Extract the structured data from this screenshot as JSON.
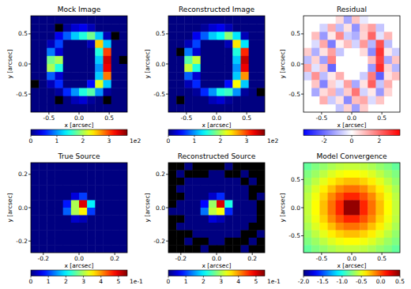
{
  "chart_data": [
    {
      "type": "heatmap",
      "title": "Mock Image",
      "x_label": "x [arcsec]",
      "y_label": "y [arcsec]",
      "xlim": [
        -0.8,
        0.8
      ],
      "ylim": [
        -0.8,
        0.8
      ],
      "xticks": [
        -0.5,
        {
          "value": 0,
          "label": "0.0"
        },
        0.5
      ],
      "yticks": [
        -0.5,
        {
          "value": 0,
          "label": "0.0"
        },
        0.5
      ],
      "color": "jet",
      "cells": [
        [
          0,
          0,
          0,
          0,
          0,
          0,
          0,
          0,
          0,
          0,
          0,
          0
        ],
        [
          0,
          0,
          0,
          -5,
          10,
          30,
          40,
          20,
          0,
          0,
          0,
          0
        ],
        [
          0,
          0,
          0,
          40,
          80,
          120,
          150,
          180,
          120,
          20,
          -5,
          0
        ],
        [
          0,
          0,
          20,
          70,
          0,
          0,
          0,
          20,
          250,
          120,
          0,
          0
        ],
        [
          0,
          0,
          90,
          30,
          0,
          0,
          0,
          0,
          150,
          300,
          0,
          0
        ],
        [
          0,
          0,
          180,
          200,
          0,
          0,
          0,
          0,
          120,
          340,
          0,
          -5
        ],
        [
          0,
          0,
          200,
          150,
          0,
          0,
          0,
          0,
          100,
          330,
          0,
          0
        ],
        [
          0,
          0,
          80,
          30,
          0,
          0,
          0,
          0,
          120,
          280,
          0,
          0
        ],
        [
          -5,
          0,
          20,
          60,
          0,
          0,
          0,
          50,
          220,
          120,
          0,
          0
        ],
        [
          0,
          0,
          0,
          10,
          60,
          100,
          150,
          170,
          100,
          10,
          0,
          0
        ],
        [
          0,
          0,
          0,
          -5,
          0,
          20,
          30,
          10,
          0,
          -5,
          0,
          0
        ],
        [
          0,
          0,
          0,
          0,
          0,
          0,
          0,
          0,
          0,
          0,
          0,
          0
        ]
      ],
      "colorbar": {
        "range": [
          0,
          370
        ],
        "ticks": [
          0,
          {
            "value": 100,
            "label": "1"
          },
          {
            "value": 200,
            "label": "2"
          },
          {
            "value": 300,
            "label": "3"
          }
        ],
        "scale_label": "1e2"
      }
    },
    {
      "type": "heatmap",
      "title": "Reconstructed Image",
      "x_label": "x [arcsec]",
      "y_label": "y [arcsec]",
      "xlim": [
        -0.8,
        0.8
      ],
      "ylim": [
        -0.8,
        0.8
      ],
      "xticks": [
        -0.5,
        {
          "value": 0,
          "label": "0.0"
        },
        0.5
      ],
      "yticks": [
        -0.5,
        {
          "value": 0,
          "label": "0.0"
        },
        0.5
      ],
      "color": "jet",
      "cells": [
        [
          0,
          0,
          0,
          0,
          0,
          0,
          0,
          0,
          0,
          0,
          0,
          0
        ],
        [
          0,
          0,
          0,
          0,
          10,
          30,
          40,
          20,
          0,
          0,
          0,
          0
        ],
        [
          0,
          0,
          0,
          40,
          80,
          120,
          140,
          190,
          130,
          20,
          0,
          0
        ],
        [
          0,
          0,
          20,
          70,
          0,
          0,
          0,
          20,
          240,
          130,
          0,
          0
        ],
        [
          0,
          -5,
          90,
          30,
          0,
          0,
          0,
          0,
          150,
          310,
          0,
          0
        ],
        [
          0,
          0,
          170,
          210,
          0,
          0,
          0,
          0,
          120,
          345,
          0,
          0
        ],
        [
          0,
          0,
          210,
          150,
          0,
          0,
          0,
          0,
          100,
          330,
          0,
          0
        ],
        [
          0,
          0,
          80,
          30,
          0,
          0,
          0,
          0,
          120,
          270,
          0,
          0
        ],
        [
          0,
          0,
          20,
          60,
          0,
          0,
          0,
          50,
          230,
          120,
          0,
          0
        ],
        [
          0,
          0,
          0,
          10,
          60,
          100,
          150,
          160,
          100,
          10,
          0,
          -5
        ],
        [
          0,
          -5,
          0,
          0,
          0,
          20,
          30,
          10,
          0,
          0,
          0,
          0
        ],
        [
          0,
          0,
          0,
          0,
          0,
          0,
          0,
          0,
          0,
          0,
          0,
          0
        ]
      ],
      "colorbar": {
        "range": [
          0,
          370
        ],
        "ticks": [
          0,
          {
            "value": 100,
            "label": "1"
          },
          {
            "value": 200,
            "label": "2"
          },
          {
            "value": 300,
            "label": "3"
          }
        ],
        "scale_label": "1e2"
      }
    },
    {
      "type": "heatmap",
      "title": "Residual",
      "x_label": "x [arcsec]",
      "y_label": "y [arcsec]",
      "xlim": [
        -0.8,
        0.8
      ],
      "ylim": [
        -0.8,
        0.8
      ],
      "xticks": [
        -0.5,
        {
          "value": 0,
          "label": "0.0"
        },
        0.5
      ],
      "yticks": [
        -0.5,
        {
          "value": 0,
          "label": "0.0"
        },
        0.5
      ],
      "color": "bwr",
      "cells": [
        [
          null,
          null,
          null,
          null,
          0.5,
          -1.2,
          0.8,
          -0.3,
          null,
          null,
          null,
          null
        ],
        [
          null,
          null,
          -0.6,
          1.1,
          -0.9,
          0.4,
          -1.5,
          0.7,
          1.3,
          -0.8,
          null,
          null
        ],
        [
          null,
          0.9,
          -1.4,
          0.3,
          1.6,
          -0.7,
          -1.1,
          0.6,
          2.1,
          -0.4,
          1.0,
          null
        ],
        [
          null,
          -0.5,
          1.2,
          -1.8,
          0.2,
          0.9,
          -0.6,
          1.4,
          -1.0,
          2.4,
          -0.9,
          null
        ],
        [
          0.7,
          -1.1,
          0.4,
          1.3,
          -0.8,
          null,
          null,
          0.5,
          -1.6,
          2.8,
          0.3,
          -0.7
        ],
        [
          -0.9,
          0.6,
          -1.3,
          1.7,
          null,
          null,
          null,
          null,
          0.9,
          2.6,
          -1.2,
          0.8
        ],
        [
          1.2,
          -0.4,
          0.8,
          -2.1,
          null,
          null,
          null,
          null,
          -1.4,
          2.9,
          0.6,
          -1.0
        ],
        [
          -0.6,
          1.5,
          -0.9,
          0.3,
          1.1,
          null,
          null,
          -0.7,
          1.8,
          -2.2,
          0.4,
          0.9
        ],
        [
          null,
          0.8,
          -1.7,
          0.6,
          -0.3,
          1.3,
          -1.2,
          0.4,
          2.2,
          -0.8,
          1.1,
          null
        ],
        [
          null,
          -1.2,
          0.5,
          1.0,
          -0.9,
          0.7,
          1.9,
          -0.6,
          0.3,
          -1.4,
          0.6,
          null
        ],
        [
          null,
          null,
          1.1,
          -0.7,
          0.4,
          -1.6,
          0.9,
          1.2,
          -0.5,
          0.8,
          null,
          null
        ],
        [
          null,
          null,
          null,
          null,
          -0.8,
          0.6,
          -1.3,
          0.7,
          null,
          null,
          null,
          null
        ]
      ],
      "colorbar": {
        "range": [
          -3.5,
          3.5
        ],
        "ticks": [
          -2,
          0,
          2
        ]
      }
    },
    {
      "type": "heatmap",
      "title": "True Source",
      "x_label": "x [arcsec]",
      "y_label": "y [arcsec]",
      "xlim": [
        -0.27,
        0.27
      ],
      "ylim": [
        -0.27,
        0.27
      ],
      "xticks": [
        -0.2,
        {
          "value": 0,
          "label": "0.0"
        },
        0.2
      ],
      "yticks": [
        -0.2,
        {
          "value": 0,
          "label": "0.0"
        },
        0.2
      ],
      "color": "jet",
      "cells": [
        [
          0,
          0,
          0,
          0,
          0,
          0,
          0,
          0,
          0,
          0,
          0,
          0
        ],
        [
          0,
          0,
          0,
          0,
          0,
          0,
          0,
          0,
          0,
          0,
          0,
          0
        ],
        [
          0,
          0,
          0,
          0,
          0,
          0,
          0,
          0,
          0,
          0,
          0,
          0
        ],
        [
          0,
          0,
          0,
          0,
          0,
          0,
          0,
          0,
          0,
          0,
          0,
          0
        ],
        [
          0,
          0,
          0,
          0,
          0,
          0.05,
          0.1,
          0,
          0,
          0,
          0,
          0
        ],
        [
          0,
          0,
          0,
          0,
          0.08,
          0.3,
          0.5,
          0.2,
          0,
          0,
          0,
          0
        ],
        [
          0,
          0,
          0,
          0,
          0.12,
          0.3,
          0.35,
          0.1,
          0,
          0,
          0,
          0
        ],
        [
          0,
          0,
          0,
          0,
          0,
          0.04,
          0.03,
          0,
          0,
          0,
          0,
          0
        ],
        [
          0,
          0,
          0,
          0,
          0,
          0,
          0,
          0,
          0,
          0,
          0,
          0
        ],
        [
          0,
          0,
          0,
          0,
          0,
          0,
          0,
          0,
          0,
          0,
          0,
          0
        ],
        [
          0,
          0,
          0,
          0,
          0,
          0,
          0,
          0,
          0,
          0,
          0,
          0
        ],
        [
          0,
          0,
          0,
          0,
          0,
          0,
          0,
          0,
          0,
          0,
          0,
          0
        ]
      ],
      "colorbar": {
        "range": [
          0,
          0.55
        ],
        "ticks": [
          0,
          {
            "value": 0.1,
            "label": "1"
          },
          {
            "value": 0.2,
            "label": "2"
          },
          {
            "value": 0.3,
            "label": "3"
          },
          {
            "value": 0.4,
            "label": "4"
          },
          {
            "value": 0.5,
            "label": "5"
          }
        ],
        "scale_label": "1e-1"
      }
    },
    {
      "type": "heatmap",
      "title": "Reconstructed Source",
      "x_label": "x [arcsec]",
      "y_label": "y [arcsec]",
      "xlim": [
        -0.27,
        0.27
      ],
      "ylim": [
        -0.27,
        0.27
      ],
      "xticks": [
        -0.2,
        {
          "value": 0,
          "label": "0.0"
        },
        0.2
      ],
      "yticks": [
        -0.2,
        {
          "value": 0,
          "label": "0.0"
        },
        0.2
      ],
      "color": "jet",
      "cells": [
        [
          -0.01,
          -0.01,
          0,
          -0.01,
          -0.01,
          -0.01,
          -0.01,
          0,
          -0.01,
          -0.01,
          -0.01,
          -0.01
        ],
        [
          -0.01,
          0,
          -0.01,
          -0.01,
          -0.01,
          0,
          0,
          -0.01,
          -0.01,
          0,
          -0.01,
          -0.01
        ],
        [
          -0.01,
          -0.01,
          0,
          0,
          0,
          0,
          0,
          0,
          0,
          -0.01,
          0,
          -0.01
        ],
        [
          -0.01,
          0,
          0,
          0,
          0,
          0,
          0,
          0,
          0,
          0,
          -0.01,
          -0.01
        ],
        [
          -0.01,
          -0.01,
          0,
          0,
          0,
          0.04,
          0.09,
          0,
          0,
          0,
          -0.01,
          0
        ],
        [
          -0.01,
          0,
          0,
          0,
          0.07,
          0.29,
          0.5,
          0.22,
          0,
          0,
          0,
          -0.01
        ],
        [
          0,
          0,
          0,
          0,
          0.13,
          0.31,
          0.34,
          0.09,
          0,
          0,
          0,
          -0.01
        ],
        [
          -0.01,
          -0.01,
          0,
          0,
          0,
          0.05,
          0.03,
          0,
          0,
          0,
          0,
          -0.01
        ],
        [
          -0.01,
          0,
          0,
          0,
          0,
          0,
          0,
          0,
          0,
          0,
          -0.01,
          -0.01
        ],
        [
          -0.01,
          -0.01,
          -0.01,
          0,
          0,
          0,
          0,
          0,
          0,
          -0.01,
          -0.01,
          0
        ],
        [
          -0.01,
          -0.01,
          0,
          -0.01,
          -0.01,
          0,
          0,
          -0.01,
          -0.01,
          -0.01,
          0,
          -0.01
        ],
        [
          -0.01,
          -0.01,
          -0.01,
          -0.01,
          0,
          -0.01,
          -0.01,
          -0.01,
          -0.01,
          0,
          -0.01,
          -0.01
        ]
      ],
      "colorbar": {
        "range": [
          0,
          0.55
        ],
        "ticks": [
          0,
          {
            "value": 0.1,
            "label": "1"
          },
          {
            "value": 0.2,
            "label": "2"
          },
          {
            "value": 0.3,
            "label": "3"
          },
          {
            "value": 0.4,
            "label": "4"
          },
          {
            "value": 0.5,
            "label": "5"
          }
        ],
        "scale_label": "1e-1"
      }
    },
    {
      "type": "heatmap",
      "title": "Model Convergence",
      "x_label": "x [arcsec]",
      "y_label": "y [arcsec]",
      "xlim": [
        -0.8,
        0.8
      ],
      "ylim": [
        -0.8,
        0.8
      ],
      "xticks": [
        -0.5,
        {
          "value": 0,
          "label": "0.0"
        },
        0.5
      ],
      "yticks": [
        -0.5,
        {
          "value": 0,
          "label": "0.0"
        },
        0.5
      ],
      "color": "jet",
      "cells": [
        [
          -0.82,
          -0.75,
          -0.7,
          -0.64,
          -0.6,
          -0.58,
          -0.58,
          -0.6,
          -0.64,
          -0.7,
          -0.75,
          -0.82
        ],
        [
          -0.75,
          -0.68,
          -0.6,
          -0.52,
          -0.47,
          -0.44,
          -0.44,
          -0.47,
          -0.52,
          -0.6,
          -0.68,
          -0.75
        ],
        [
          -0.7,
          -0.6,
          -0.5,
          -0.4,
          -0.33,
          -0.28,
          -0.28,
          -0.33,
          -0.4,
          -0.5,
          -0.6,
          -0.7
        ],
        [
          -0.64,
          -0.52,
          -0.4,
          -0.28,
          -0.15,
          -0.09,
          -0.09,
          -0.15,
          -0.28,
          -0.4,
          -0.52,
          -0.64
        ],
        [
          -0.6,
          -0.47,
          -0.33,
          -0.15,
          -0.01,
          0.1,
          0.1,
          -0.01,
          -0.15,
          -0.33,
          -0.47,
          -0.6
        ],
        [
          -0.58,
          -0.44,
          -0.28,
          -0.09,
          0.1,
          0.45,
          0.45,
          0.1,
          -0.09,
          -0.28,
          -0.44,
          -0.58
        ],
        [
          -0.58,
          -0.44,
          -0.28,
          -0.09,
          0.1,
          0.45,
          0.45,
          0.1,
          -0.09,
          -0.28,
          -0.44,
          -0.58
        ],
        [
          -0.6,
          -0.47,
          -0.33,
          -0.15,
          -0.01,
          0.1,
          0.1,
          -0.01,
          -0.15,
          -0.33,
          -0.47,
          -0.6
        ],
        [
          -0.64,
          -0.52,
          -0.4,
          -0.28,
          -0.15,
          -0.09,
          -0.09,
          -0.15,
          -0.28,
          -0.4,
          -0.52,
          -0.64
        ],
        [
          -0.7,
          -0.6,
          -0.5,
          -0.4,
          -0.33,
          -0.28,
          -0.28,
          -0.33,
          -0.4,
          -0.5,
          -0.6,
          -0.7
        ],
        [
          -0.75,
          -0.68,
          -0.6,
          -0.52,
          -0.47,
          -0.44,
          -0.44,
          -0.47,
          -0.52,
          -0.6,
          -0.68,
          -0.75
        ],
        [
          -0.82,
          -0.75,
          -0.7,
          -0.64,
          -0.6,
          -0.58,
          -0.58,
          -0.6,
          -0.64,
          -0.7,
          -0.75,
          -0.82
        ]
      ],
      "colorbar": {
        "range": [
          -2,
          0.5
        ],
        "ticks": [
          {
            "value": -2,
            "label": "-2.0"
          },
          -1.5,
          {
            "value": -1,
            "label": "-1.0"
          },
          -0.5,
          {
            "value": 0,
            "label": "0.0"
          },
          0.5
        ]
      }
    }
  ]
}
